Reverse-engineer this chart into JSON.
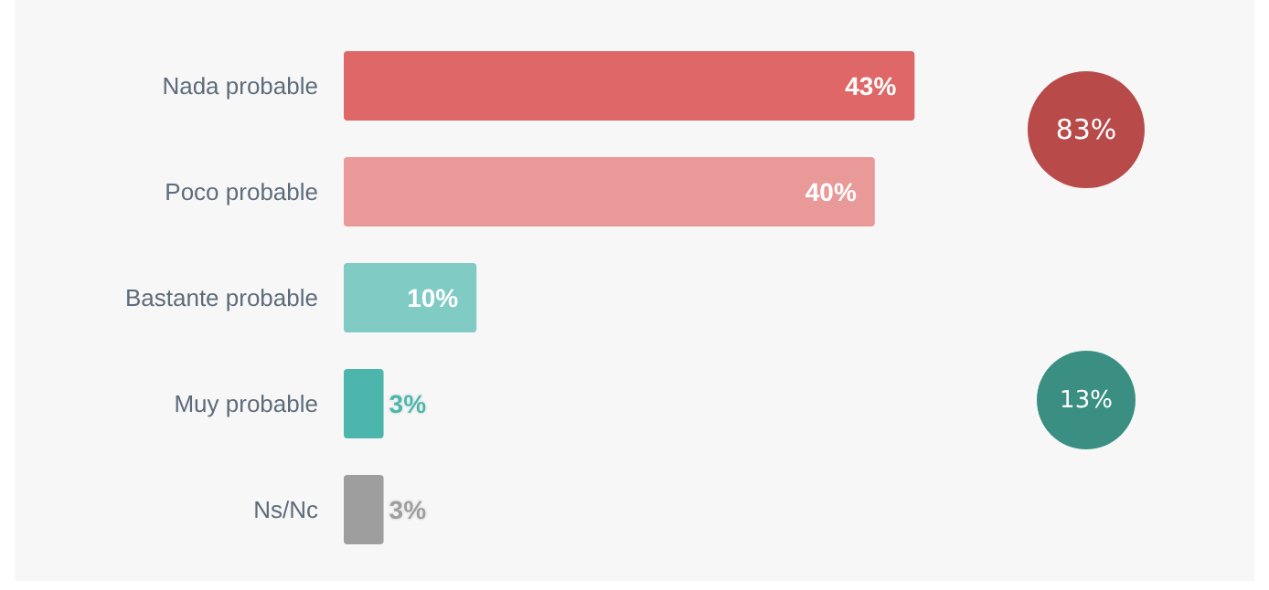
{
  "chart_data": {
    "type": "bar",
    "orientation": "horizontal",
    "categories": [
      "Nada probable",
      "Poco probable",
      "Bastante probable",
      "Muy probable",
      "Ns/Nc"
    ],
    "values": [
      43,
      40,
      10,
      3,
      3
    ],
    "colors": [
      "#e06767",
      "#ea9999",
      "#80cbc4",
      "#4db6ac",
      "#9e9e9e"
    ],
    "value_labels": [
      "43%",
      "40%",
      "10%",
      "3%",
      "3%"
    ],
    "tick_labels": "y",
    "annotations": [
      "83%",
      "13%"
    ]
  }
}
